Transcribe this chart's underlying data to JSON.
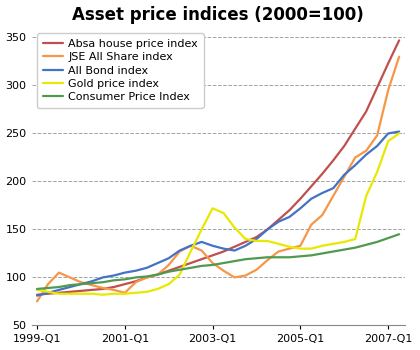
{
  "title": "Asset price indices (2000=100)",
  "ylim": [
    50,
    360
  ],
  "yticks": [
    50,
    100,
    150,
    200,
    250,
    300,
    350
  ],
  "series": {
    "Absa house price index": {
      "color": "#c0504d",
      "data": [
        82,
        83,
        84,
        85,
        86,
        87,
        88,
        90,
        93,
        96,
        100,
        103,
        107,
        111,
        115,
        119,
        123,
        127,
        132,
        137,
        142,
        150,
        160,
        170,
        182,
        195,
        208,
        222,
        237,
        255,
        273,
        298,
        323,
        347
      ]
    },
    "JSE All Share index": {
      "color": "#f79646",
      "data": [
        75,
        93,
        105,
        100,
        95,
        92,
        89,
        87,
        84,
        95,
        100,
        103,
        113,
        127,
        133,
        128,
        115,
        107,
        100,
        102,
        108,
        118,
        127,
        130,
        133,
        155,
        165,
        185,
        205,
        225,
        232,
        248,
        295,
        330
      ]
    },
    "All Bond index": {
      "color": "#4472c4",
      "data": [
        81,
        84,
        87,
        90,
        93,
        96,
        100,
        102,
        105,
        107,
        110,
        115,
        120,
        128,
        133,
        137,
        133,
        130,
        128,
        133,
        140,
        150,
        158,
        163,
        172,
        182,
        188,
        193,
        207,
        217,
        228,
        237,
        250,
        252
      ]
    },
    "Gold price index": {
      "color": "#e8e800",
      "data": [
        87,
        85,
        83,
        83,
        83,
        83,
        82,
        83,
        83,
        84,
        85,
        88,
        93,
        103,
        127,
        150,
        172,
        167,
        152,
        140,
        138,
        138,
        135,
        132,
        130,
        130,
        133,
        135,
        137,
        140,
        185,
        210,
        242,
        250
      ]
    },
    "Consumer Price Index": {
      "color": "#4e9a50",
      "data": [
        88,
        89,
        90,
        92,
        93,
        94,
        95,
        97,
        98,
        100,
        101,
        103,
        106,
        108,
        110,
        112,
        113,
        115,
        117,
        119,
        120,
        121,
        121,
        121,
        122,
        123,
        125,
        127,
        129,
        131,
        134,
        137,
        141,
        145
      ]
    }
  },
  "x_tick_positions": [
    0,
    8,
    16,
    24,
    32
  ],
  "x_tick_labels": [
    "1999-Q1",
    "2001-Q1",
    "2003-Q1",
    "2005-Q1",
    "2007-Q1"
  ],
  "n_points": 34,
  "background_color": "#ffffff",
  "grid_color": "#999999",
  "legend_loc": "upper left",
  "legend_fontsize": 8,
  "title_fontsize": 12,
  "tick_fontsize": 8
}
